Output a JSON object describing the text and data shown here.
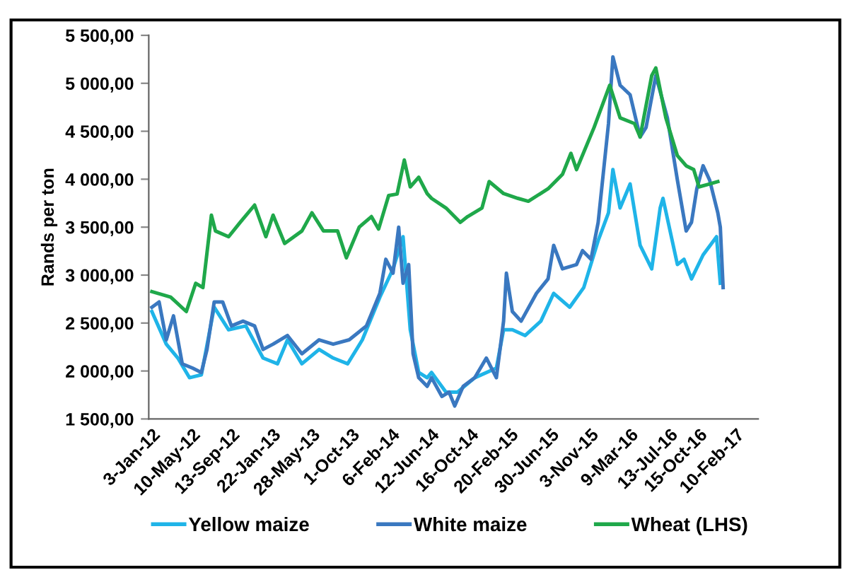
{
  "chart_data": {
    "type": "line",
    "ylabel": "Rands per ton",
    "ylim": [
      1500,
      5500
    ],
    "yticks": [
      {
        "value": 1500,
        "label": "1 500,00"
      },
      {
        "value": 2000,
        "label": "2 000,00"
      },
      {
        "value": 2500,
        "label": "2 500,00"
      },
      {
        "value": 3000,
        "label": "3 000,00"
      },
      {
        "value": 3500,
        "label": "3 500,00"
      },
      {
        "value": 4000,
        "label": "4 000,00"
      },
      {
        "value": 4500,
        "label": "4 500,00"
      },
      {
        "value": 5000,
        "label": "5 000,00"
      },
      {
        "value": 5500,
        "label": "5 500,00"
      }
    ],
    "xlim": [
      "2011-12-24",
      "2017-04-22"
    ],
    "xticks": [
      {
        "value": "2012-01-03",
        "label": "3-Jan-12"
      },
      {
        "value": "2012-05-10",
        "label": "10-May-12"
      },
      {
        "value": "2012-09-13",
        "label": "13-Sep-12"
      },
      {
        "value": "2013-01-22",
        "label": "22-Jan-13"
      },
      {
        "value": "2013-05-28",
        "label": "28-May-13"
      },
      {
        "value": "2013-10-01",
        "label": "1-Oct-13"
      },
      {
        "value": "2014-02-06",
        "label": "6-Feb-14"
      },
      {
        "value": "2014-06-12",
        "label": "12-Jun-14"
      },
      {
        "value": "2014-10-16",
        "label": "16-Oct-14"
      },
      {
        "value": "2015-02-20",
        "label": "20-Feb-15"
      },
      {
        "value": "2015-06-30",
        "label": "30-Jun-15"
      },
      {
        "value": "2015-11-03",
        "label": "3-Nov-15"
      },
      {
        "value": "2016-03-09",
        "label": "9-Mar-16"
      },
      {
        "value": "2016-07-13",
        "label": "13-Jul-16"
      },
      {
        "value": "2016-10-15",
        "label": "15-Oct-16"
      },
      {
        "value": "2017-02-10",
        "label": "10-Feb-17"
      }
    ],
    "grid": false,
    "legend": "bottom",
    "marker": "none",
    "line_style": "solid",
    "series": [
      {
        "name": "Yellow maize",
        "color": "#1fb4e8",
        "x": [
          "2012-01-03",
          "2012-02-18",
          "2012-03-26",
          "2012-05-02",
          "2012-06-09",
          "2012-07-20",
          "2012-09-04",
          "2012-10-29",
          "2012-12-23",
          "2013-02-07",
          "2013-03-11",
          "2013-04-26",
          "2013-06-20",
          "2013-08-04",
          "2013-09-19",
          "2013-11-05",
          "2013-12-31",
          "2014-02-11",
          "2014-03-15",
          "2014-04-07",
          "2014-05-04",
          "2014-05-31",
          "2014-06-14",
          "2014-07-30",
          "2014-09-05",
          "2014-10-30",
          "2015-01-07",
          "2015-01-30",
          "2015-02-27",
          "2015-04-09",
          "2015-05-29",
          "2015-07-09",
          "2015-08-29",
          "2015-10-13",
          "2015-11-28",
          "2015-12-31",
          "2016-01-14",
          "2016-02-06",
          "2016-03-09",
          "2016-04-10",
          "2016-05-17",
          "2016-06-13",
          "2016-06-22",
          "2016-08-07",
          "2016-08-28",
          "2016-09-21",
          "2016-10-28",
          "2016-12-10",
          "2016-12-22"
        ],
        "values": [
          2620,
          2280,
          2135,
          1930,
          1960,
          2665,
          2430,
          2470,
          2135,
          2075,
          2325,
          2075,
          2225,
          2135,
          2075,
          2325,
          2770,
          3065,
          3400,
          2430,
          1985,
          1930,
          1985,
          1780,
          1780,
          1930,
          2030,
          2430,
          2430,
          2370,
          2520,
          2810,
          2665,
          2870,
          3360,
          3650,
          4100,
          3700,
          3950,
          3310,
          3065,
          3700,
          3800,
          3110,
          3165,
          2960,
          3210,
          3400,
          2915
        ]
      },
      {
        "name": "White maize",
        "color": "#3a78c0",
        "x": [
          "2012-01-03",
          "2012-01-26",
          "2012-02-18",
          "2012-03-12",
          "2012-04-09",
          "2012-05-12",
          "2012-06-09",
          "2012-06-27",
          "2012-07-20",
          "2012-08-16",
          "2012-09-13",
          "2012-10-20",
          "2012-11-26",
          "2012-12-23",
          "2013-01-24",
          "2013-03-11",
          "2013-04-26",
          "2013-06-20",
          "2013-08-04",
          "2013-09-24",
          "2013-11-18",
          "2013-12-31",
          "2014-01-19",
          "2014-02-11",
          "2014-03-01",
          "2014-03-15",
          "2014-04-02",
          "2014-04-16",
          "2014-05-04",
          "2014-05-31",
          "2014-06-14",
          "2014-07-17",
          "2014-08-09",
          "2014-08-27",
          "2014-09-23",
          "2014-10-30",
          "2014-12-06",
          "2015-01-07",
          "2015-01-30",
          "2015-02-08",
          "2015-02-27",
          "2015-03-27",
          "2015-05-15",
          "2015-06-21",
          "2015-07-09",
          "2015-08-06",
          "2015-09-20",
          "2015-10-09",
          "2015-11-05",
          "2015-11-28",
          "2015-12-31",
          "2016-01-14",
          "2016-02-06",
          "2016-03-09",
          "2016-04-10",
          "2016-04-29",
          "2016-05-30",
          "2016-07-06",
          "2016-08-07",
          "2016-09-04",
          "2016-09-21",
          "2016-10-08",
          "2016-10-28",
          "2016-11-18",
          "2016-12-14",
          "2016-12-22",
          "2016-12-31"
        ],
        "values": [
          2665,
          2720,
          2325,
          2575,
          2075,
          2030,
          1985,
          2225,
          2720,
          2720,
          2470,
          2520,
          2470,
          2225,
          2280,
          2370,
          2180,
          2325,
          2280,
          2325,
          2470,
          2810,
          3165,
          3020,
          3500,
          2915,
          3110,
          2180,
          1930,
          1840,
          1930,
          1735,
          1780,
          1635,
          1840,
          1930,
          2135,
          1930,
          2520,
          3020,
          2620,
          2520,
          2810,
          2960,
          3310,
          3065,
          3110,
          3255,
          3165,
          3550,
          4580,
          5275,
          4980,
          4880,
          4440,
          4540,
          5080,
          4640,
          3990,
          3460,
          3550,
          3900,
          4140,
          3990,
          3650,
          3500,
          2870
        ]
      },
      {
        "name": "Wheat (LHS)",
        "color": "#1fa84a",
        "x": [
          "2012-01-03",
          "2012-03-03",
          "2012-04-22",
          "2012-05-22",
          "2012-06-14",
          "2012-07-11",
          "2012-07-24",
          "2012-09-04",
          "2012-10-11",
          "2012-11-26",
          "2013-01-01",
          "2013-01-24",
          "2013-03-02",
          "2013-04-26",
          "2013-05-28",
          "2013-07-04",
          "2013-08-18",
          "2013-09-15",
          "2013-10-26",
          "2013-12-04",
          "2013-12-27",
          "2014-01-28",
          "2014-02-24",
          "2014-03-19",
          "2014-04-07",
          "2014-05-04",
          "2014-05-31",
          "2014-06-14",
          "2014-07-30",
          "2014-09-14",
          "2014-10-07",
          "2014-11-22",
          "2014-12-15",
          "2015-01-30",
          "2015-03-17",
          "2015-04-19",
          "2015-06-21",
          "2015-08-06",
          "2015-09-02",
          "2015-09-20",
          "2015-11-15",
          "2016-01-04",
          "2016-02-06",
          "2016-03-23",
          "2016-04-10",
          "2016-05-17",
          "2016-05-30",
          "2016-07-01",
          "2016-08-07",
          "2016-09-04",
          "2016-09-28",
          "2016-10-15",
          "2016-11-18",
          "2016-12-14"
        ],
        "values": [
          2828,
          2770,
          2620,
          2915,
          2870,
          3625,
          3460,
          3400,
          3550,
          3730,
          3400,
          3625,
          3330,
          3460,
          3650,
          3460,
          3460,
          3180,
          3500,
          3610,
          3480,
          3830,
          3845,
          4200,
          3920,
          4020,
          3850,
          3800,
          3700,
          3550,
          3610,
          3700,
          3975,
          3850,
          3800,
          3770,
          3900,
          4050,
          4270,
          4100,
          4540,
          4980,
          4640,
          4580,
          4440,
          5080,
          5160,
          4640,
          4245,
          4140,
          4100,
          3920,
          3950,
          3975
        ]
      }
    ]
  }
}
